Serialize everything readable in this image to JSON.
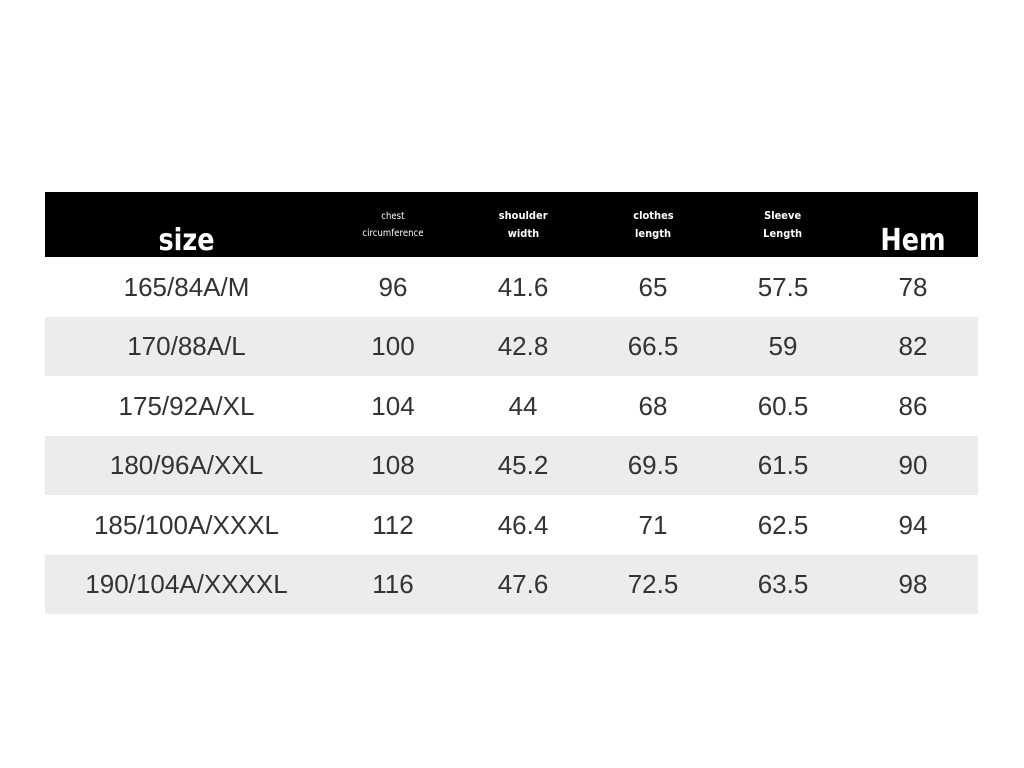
{
  "table": {
    "headers": [
      [
        "size"
      ],
      [
        "chest",
        "circumference"
      ],
      [
        "shoulder",
        "width"
      ],
      [
        "clothes",
        "length"
      ],
      [
        "Sleeve",
        "Length"
      ],
      [
        "Hem"
      ]
    ],
    "rows": [
      [
        "165/84A/M",
        "96",
        "41.6",
        "65",
        "57.5",
        "78"
      ],
      [
        "170/88A/L",
        "100",
        "42.8",
        "66.5",
        "59",
        "82"
      ],
      [
        "175/92A/XL",
        "104",
        "44",
        "68",
        "60.5",
        "86"
      ],
      [
        "180/96A/XXL",
        "108",
        "45.2",
        "69.5",
        "61.5",
        "90"
      ],
      [
        "185/100A/XXXL",
        "112",
        "46.4",
        "71",
        "62.5",
        "94"
      ],
      [
        "190/104A/XXXXL",
        "116",
        "47.6",
        "72.5",
        "63.5",
        "98"
      ]
    ]
  }
}
